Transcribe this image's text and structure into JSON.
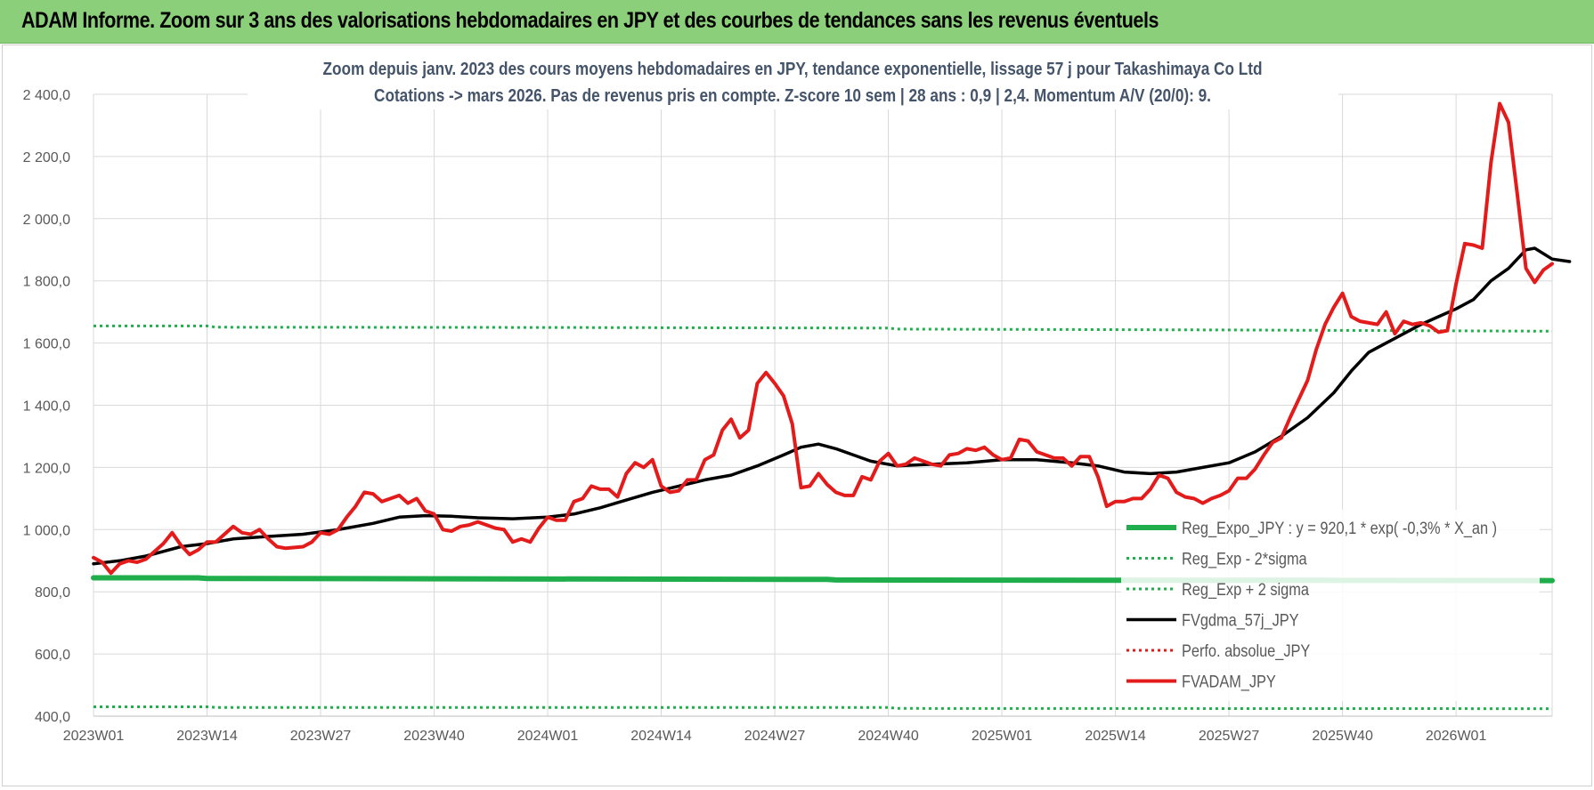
{
  "banner": {
    "title": "ADAM Informe. Zoom sur 3 ans des valorisations hebdomadaires en JPY et des courbes de tendances sans les revenus éventuels"
  },
  "colors": {
    "banner": "#8ccf7a",
    "reg_expo": "#1fae4b",
    "sigma": "#1fae4b",
    "fvgdma": "#000000",
    "perfo": "#e31b1b",
    "fvadam": "#e31b1b",
    "title_text": "#44546a"
  },
  "chart_data": {
    "type": "line",
    "title_line1": "Zoom depuis janv. 2023 des cours moyens hebdomadaires en JPY, tendance exponentielle, lissage 57 j pour Takashimaya Co Ltd",
    "title_line2": "Cotations -> mars 2026. Pas de revenus pris en compte. Z-score 10 sem | 28 ans : 0,9 | 2,4. Momentum A/V (20/0): 9.",
    "ylim": [
      400,
      2400
    ],
    "yticks": [
      "2 400,0",
      "2 200,0",
      "2 000,0",
      "1 800,0",
      "1 600,0",
      "1 400,0",
      "1 200,0",
      "1 000,0",
      "800,0",
      "600,0",
      "400,0"
    ],
    "xlim": [
      0,
      167
    ],
    "xticks": [
      {
        "i": 0,
        "label": "2023W01"
      },
      {
        "i": 13,
        "label": "2023W14"
      },
      {
        "i": 26,
        "label": "2023W27"
      },
      {
        "i": 39,
        "label": "2023W40"
      },
      {
        "i": 52,
        "label": "2024W01"
      },
      {
        "i": 65,
        "label": "2024W14"
      },
      {
        "i": 78,
        "label": "2024W27"
      },
      {
        "i": 91,
        "label": "2024W40"
      },
      {
        "i": 104,
        "label": "2025W01"
      },
      {
        "i": 117,
        "label": "2025W14"
      },
      {
        "i": 130,
        "label": "2025W27"
      },
      {
        "i": 143,
        "label": "2025W40"
      },
      {
        "i": 156,
        "label": "2026W01"
      }
    ],
    "grid": true,
    "legend_position": "bottom-right",
    "legend": [
      {
        "key": "reg_expo",
        "label": "Reg_Expo_JPY : y = 920,1 * exp( -0,3% *  X_an )",
        "style": "thick"
      },
      {
        "key": "sigma_low",
        "label": "Reg_Exp - 2*sigma",
        "style": "dotted-green"
      },
      {
        "key": "sigma_high",
        "label": "Reg_Exp + 2 sigma",
        "style": "dotted-green"
      },
      {
        "key": "fvgdma",
        "label": "FVgdma_57j_JPY",
        "style": "solid-black"
      },
      {
        "key": "perfo",
        "label": "Perfo. absolue_JPY",
        "style": "dotted-red"
      },
      {
        "key": "fvadam",
        "label": "FVADAM_JPY",
        "style": "solid-red"
      }
    ],
    "series": [
      {
        "key": "reg_expo",
        "points": [
          [
            0,
            845
          ],
          [
            12,
            845
          ],
          [
            13,
            843
          ],
          [
            80,
            840
          ],
          [
            84,
            840
          ],
          [
            85,
            838
          ],
          [
            167,
            836
          ]
        ]
      },
      {
        "key": "sigma_high",
        "points": [
          [
            0,
            1655
          ],
          [
            13,
            1655
          ],
          [
            14,
            1651
          ],
          [
            52,
            1650
          ],
          [
            91,
            1648
          ],
          [
            92,
            1645
          ],
          [
            130,
            1642
          ],
          [
            167,
            1638
          ]
        ]
      },
      {
        "key": "sigma_low",
        "points": [
          [
            0,
            430
          ],
          [
            13,
            430
          ],
          [
            14,
            428
          ],
          [
            91,
            428
          ],
          [
            92,
            425
          ],
          [
            167,
            424
          ]
        ]
      },
      {
        "key": "fvgdma",
        "points": [
          [
            0,
            890
          ],
          [
            3,
            900
          ],
          [
            6,
            915
          ],
          [
            8,
            930
          ],
          [
            10,
            945
          ],
          [
            13,
            955
          ],
          [
            16,
            970
          ],
          [
            20,
            978
          ],
          [
            24,
            985
          ],
          [
            28,
            1000
          ],
          [
            32,
            1020
          ],
          [
            35,
            1040
          ],
          [
            38,
            1045
          ],
          [
            41,
            1043
          ],
          [
            44,
            1038
          ],
          [
            48,
            1035
          ],
          [
            52,
            1040
          ],
          [
            55,
            1050
          ],
          [
            58,
            1070
          ],
          [
            61,
            1095
          ],
          [
            64,
            1120
          ],
          [
            67,
            1140
          ],
          [
            70,
            1160
          ],
          [
            73,
            1175
          ],
          [
            76,
            1205
          ],
          [
            79,
            1240
          ],
          [
            81,
            1265
          ],
          [
            83,
            1275
          ],
          [
            85,
            1260
          ],
          [
            87,
            1240
          ],
          [
            89,
            1220
          ],
          [
            92,
            1205
          ],
          [
            96,
            1210
          ],
          [
            100,
            1215
          ],
          [
            104,
            1225
          ],
          [
            108,
            1225
          ],
          [
            112,
            1215
          ],
          [
            115,
            1205
          ],
          [
            118,
            1185
          ],
          [
            121,
            1180
          ],
          [
            124,
            1185
          ],
          [
            127,
            1200
          ],
          [
            130,
            1215
          ],
          [
            133,
            1250
          ],
          [
            136,
            1300
          ],
          [
            139,
            1360
          ],
          [
            142,
            1440
          ],
          [
            144,
            1510
          ],
          [
            146,
            1570
          ],
          [
            148,
            1600
          ],
          [
            150,
            1630
          ],
          [
            152,
            1660
          ],
          [
            154,
            1685
          ],
          [
            156,
            1710
          ],
          [
            158,
            1740
          ],
          [
            160,
            1800
          ],
          [
            162,
            1840
          ],
          [
            164,
            1900
          ],
          [
            165,
            1905
          ],
          [
            167,
            1870
          ],
          [
            169,
            1862
          ]
        ]
      },
      {
        "key": "fvadam",
        "points": [
          [
            0,
            910
          ],
          [
            1,
            895
          ],
          [
            2,
            860
          ],
          [
            3,
            890
          ],
          [
            4,
            900
          ],
          [
            5,
            895
          ],
          [
            6,
            905
          ],
          [
            7,
            930
          ],
          [
            8,
            955
          ],
          [
            9,
            990
          ],
          [
            10,
            950
          ],
          [
            11,
            920
          ],
          [
            12,
            935
          ],
          [
            13,
            960
          ],
          [
            14,
            960
          ],
          [
            15,
            985
          ],
          [
            16,
            1010
          ],
          [
            17,
            990
          ],
          [
            18,
            985
          ],
          [
            19,
            1000
          ],
          [
            20,
            970
          ],
          [
            21,
            945
          ],
          [
            22,
            940
          ],
          [
            24,
            945
          ],
          [
            25,
            960
          ],
          [
            26,
            990
          ],
          [
            27,
            985
          ],
          [
            28,
            1000
          ],
          [
            29,
            1040
          ],
          [
            30,
            1075
          ],
          [
            31,
            1120
          ],
          [
            32,
            1115
          ],
          [
            33,
            1090
          ],
          [
            34,
            1100
          ],
          [
            35,
            1110
          ],
          [
            36,
            1085
          ],
          [
            37,
            1100
          ],
          [
            38,
            1060
          ],
          [
            39,
            1050
          ],
          [
            40,
            1000
          ],
          [
            41,
            995
          ],
          [
            42,
            1010
          ],
          [
            43,
            1015
          ],
          [
            44,
            1025
          ],
          [
            45,
            1015
          ],
          [
            46,
            1005
          ],
          [
            47,
            1000
          ],
          [
            48,
            960
          ],
          [
            49,
            970
          ],
          [
            50,
            960
          ],
          [
            51,
            1005
          ],
          [
            52,
            1040
          ],
          [
            53,
            1030
          ],
          [
            54,
            1030
          ],
          [
            55,
            1090
          ],
          [
            56,
            1100
          ],
          [
            57,
            1140
          ],
          [
            58,
            1130
          ],
          [
            59,
            1130
          ],
          [
            60,
            1105
          ],
          [
            61,
            1180
          ],
          [
            62,
            1215
          ],
          [
            63,
            1200
          ],
          [
            64,
            1225
          ],
          [
            65,
            1140
          ],
          [
            66,
            1120
          ],
          [
            67,
            1125
          ],
          [
            68,
            1160
          ],
          [
            69,
            1160
          ],
          [
            70,
            1225
          ],
          [
            71,
            1240
          ],
          [
            72,
            1320
          ],
          [
            73,
            1355
          ],
          [
            74,
            1295
          ],
          [
            75,
            1320
          ],
          [
            76,
            1470
          ],
          [
            77,
            1505
          ],
          [
            78,
            1470
          ],
          [
            79,
            1430
          ],
          [
            80,
            1340
          ],
          [
            81,
            1135
          ],
          [
            82,
            1140
          ],
          [
            83,
            1180
          ],
          [
            84,
            1145
          ],
          [
            85,
            1120
          ],
          [
            86,
            1110
          ],
          [
            87,
            1110
          ],
          [
            88,
            1170
          ],
          [
            89,
            1160
          ],
          [
            90,
            1220
          ],
          [
            91,
            1245
          ],
          [
            92,
            1205
          ],
          [
            93,
            1210
          ],
          [
            94,
            1230
          ],
          [
            95,
            1220
          ],
          [
            96,
            1210
          ],
          [
            97,
            1205
          ],
          [
            98,
            1240
          ],
          [
            99,
            1245
          ],
          [
            100,
            1260
          ],
          [
            101,
            1255
          ],
          [
            102,
            1265
          ],
          [
            103,
            1240
          ],
          [
            104,
            1225
          ],
          [
            105,
            1230
          ],
          [
            106,
            1290
          ],
          [
            107,
            1285
          ],
          [
            108,
            1250
          ],
          [
            109,
            1240
          ],
          [
            110,
            1230
          ],
          [
            111,
            1230
          ],
          [
            112,
            1205
          ],
          [
            113,
            1235
          ],
          [
            114,
            1235
          ],
          [
            115,
            1170
          ],
          [
            116,
            1075
          ],
          [
            117,
            1090
          ],
          [
            118,
            1090
          ],
          [
            119,
            1100
          ],
          [
            120,
            1100
          ],
          [
            121,
            1130
          ],
          [
            122,
            1175
          ],
          [
            123,
            1165
          ],
          [
            124,
            1120
          ],
          [
            125,
            1105
          ],
          [
            126,
            1100
          ],
          [
            127,
            1085
          ],
          [
            128,
            1100
          ],
          [
            129,
            1110
          ],
          [
            130,
            1125
          ],
          [
            131,
            1165
          ],
          [
            132,
            1165
          ],
          [
            133,
            1195
          ],
          [
            134,
            1240
          ],
          [
            135,
            1280
          ],
          [
            136,
            1295
          ],
          [
            137,
            1360
          ],
          [
            138,
            1420
          ],
          [
            139,
            1480
          ],
          [
            140,
            1580
          ],
          [
            141,
            1660
          ],
          [
            142,
            1715
          ],
          [
            143,
            1760
          ],
          [
            144,
            1685
          ],
          [
            145,
            1670
          ],
          [
            146,
            1665
          ],
          [
            147,
            1660
          ],
          [
            148,
            1700
          ],
          [
            149,
            1630
          ],
          [
            150,
            1670
          ],
          [
            151,
            1660
          ],
          [
            152,
            1665
          ],
          [
            153,
            1655
          ],
          [
            154,
            1635
          ],
          [
            155,
            1640
          ],
          [
            156,
            1790
          ],
          [
            157,
            1920
          ],
          [
            158,
            1915
          ],
          [
            159,
            1905
          ],
          [
            160,
            2180
          ],
          [
            161,
            2370
          ],
          [
            162,
            2310
          ],
          [
            163,
            2080
          ],
          [
            164,
            1840
          ],
          [
            165,
            1795
          ],
          [
            166,
            1835
          ],
          [
            167,
            1855
          ]
        ]
      }
    ]
  }
}
